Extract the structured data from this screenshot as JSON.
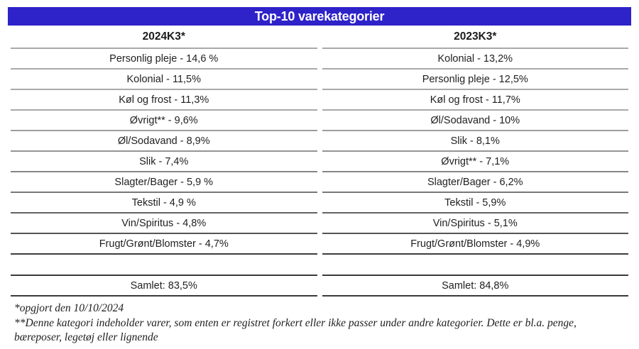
{
  "title": "Top-10 varekategorier",
  "colors": {
    "header_bg": "#2e22c9",
    "header_text": "#ffffff",
    "row_separator": "#a9a9a9",
    "dark_separator": "#3a3a3a"
  },
  "columns": [
    {
      "header": "2024K3*",
      "rows": [
        "Personlig pleje - 14,6 %",
        "Kolonial - 11,5%",
        "Køl og frost - 11,3%",
        "Øvrigt** - 9,6%",
        "Øl/Sodavand - 8,9%",
        "Slik - 7,4%",
        "Slagter/Bager - 5,9 %",
        "Tekstil - 4,9 %",
        "Vin/Spiritus - 4,8%",
        "Frugt/Grønt/Blomster - 4,7%"
      ],
      "total": "Samlet: 83,5%"
    },
    {
      "header": "2023K3*",
      "rows": [
        "Kolonial - 13,2%",
        "Personlig pleje - 12,5%",
        "Køl og frost - 11,7%",
        "Øl/Sodavand - 10%",
        "Slik - 8,1%",
        "Øvrigt** - 7,1%",
        "Slagter/Bager - 6,2%",
        "Tekstil - 5,9%",
        "Vin/Spiritus - 5,1%",
        "Frugt/Grønt/Blomster - 4,9%"
      ],
      "total": "Samlet: 84,8%"
    }
  ],
  "footnotes": [
    "*opgjort den 10/10/2024",
    "**Denne kategori indeholder varer, som enten er registret forkert eller ikke passer under andre kategorier. Dette er bl.a. penge, bæreposer, legetøj eller lignende"
  ],
  "chart_data": {
    "type": "table",
    "title": "Top-10 varekategorier",
    "columns": [
      "2024K3*",
      "2023K3*"
    ],
    "series": [
      {
        "name": "2024K3*",
        "categories": [
          "Personlig pleje",
          "Kolonial",
          "Køl og frost",
          "Øvrigt**",
          "Øl/Sodavand",
          "Slik",
          "Slagter/Bager",
          "Tekstil",
          "Vin/Spiritus",
          "Frugt/Grønt/Blomster"
        ],
        "values_pct": [
          14.6,
          11.5,
          11.3,
          9.6,
          8.9,
          7.4,
          5.9,
          4.9,
          4.8,
          4.7
        ],
        "total_pct": 83.5
      },
      {
        "name": "2023K3*",
        "categories": [
          "Kolonial",
          "Personlig pleje",
          "Køl og frost",
          "Øl/Sodavand",
          "Slik",
          "Øvrigt**",
          "Slagter/Bager",
          "Tekstil",
          "Vin/Spiritus",
          "Frugt/Grønt/Blomster"
        ],
        "values_pct": [
          13.2,
          12.5,
          11.7,
          10,
          8.1,
          7.1,
          6.2,
          5.9,
          5.1,
          4.9
        ],
        "total_pct": 84.8
      }
    ],
    "footnotes": [
      "*opgjort den 10/10/2024",
      "**Denne kategori indeholder varer, som enten er registret forkert eller ikke passer under andre kategorier. Dette er bl.a. penge, bæreposer, legetøj eller lignende"
    ]
  }
}
